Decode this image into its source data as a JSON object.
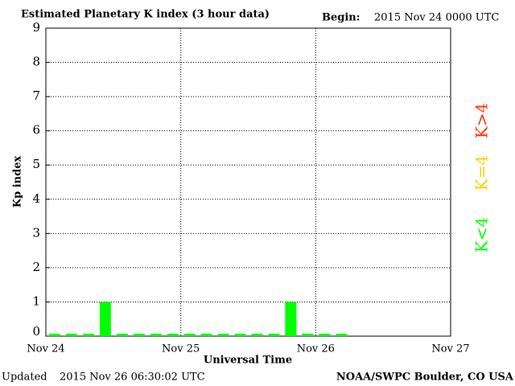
{
  "chart_data": {
    "type": "bar",
    "title": "Estimated Planetary K index (3 hour data)",
    "begin_label": "Begin:",
    "begin": "2015 Nov 24 0000 UTC",
    "x_label": "Universal Time",
    "y_label": "Kp index",
    "x_tick_labels": [
      "Nov 24",
      "Nov 25",
      "Nov 26",
      "Nov 27"
    ],
    "values": [
      0,
      0,
      0,
      1,
      0,
      0,
      0,
      0,
      0,
      0,
      0,
      0,
      0,
      0,
      1,
      0,
      0,
      0
    ],
    "color": "#00ff00",
    "ylim": [
      0,
      9
    ],
    "yticks": [
      0,
      1,
      2,
      3,
      4,
      5,
      6,
      7,
      8,
      9
    ],
    "grid": true,
    "legend": [
      {
        "name": "K<4",
        "color": "#00ff00"
      },
      {
        "name": "K=4",
        "color": "#ffcc00"
      },
      {
        "name": "K>4",
        "color": "#ff3300"
      }
    ],
    "updated_label": "Updated",
    "updated": "2015 Nov 26 06:30:02 UTC",
    "credit": "NOAA/SWPC Boulder, CO USA"
  }
}
